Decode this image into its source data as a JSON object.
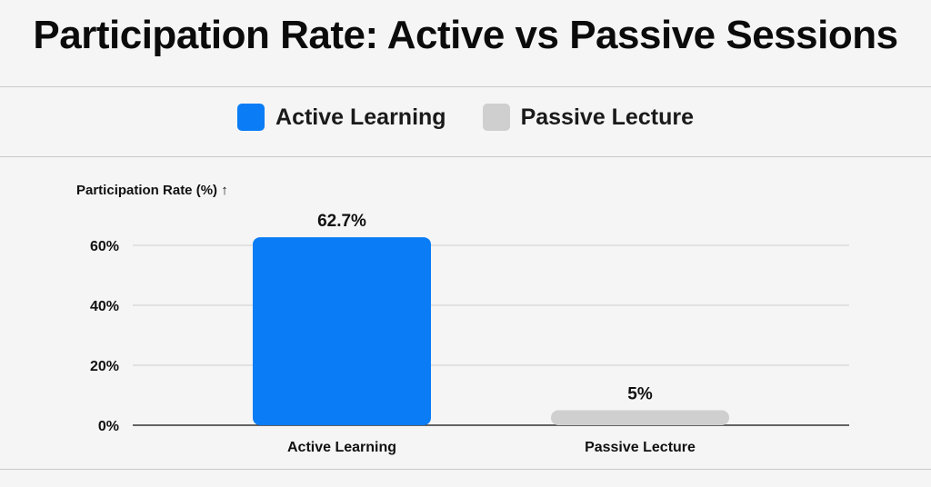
{
  "chart_data": {
    "type": "bar",
    "title": "Participation Rate: Active vs Passive Sessions",
    "ylabel": "Participation Rate (%) ↑",
    "xlabel": "",
    "categories": [
      "Active Learning",
      "Passive Lecture"
    ],
    "values": [
      62.7,
      5
    ],
    "value_labels": [
      "62.7%",
      "5%"
    ],
    "colors": [
      "#0a7cf5",
      "#cfcfcf"
    ],
    "ylim": [
      0,
      70
    ],
    "yticks": [
      0,
      20,
      40,
      60
    ],
    "ytick_labels": [
      "0%",
      "20%",
      "40%",
      "60%"
    ],
    "grid": true,
    "legend": {
      "position": "top-center",
      "entries": [
        {
          "label": "Active Learning",
          "color": "#0a7cf5"
        },
        {
          "label": "Passive Lecture",
          "color": "#cfcfcf"
        }
      ]
    }
  }
}
